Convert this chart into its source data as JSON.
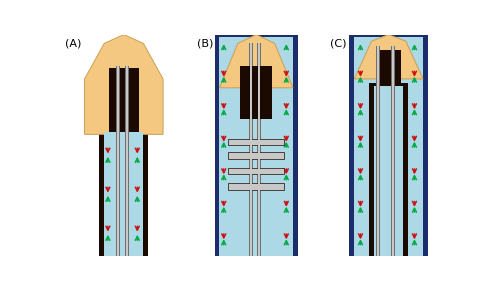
{
  "bg": "#ffffff",
  "light_blue": "#add8e6",
  "dark_navy": "#1c2d6b",
  "orange": "#f5c882",
  "dark_brown": "#1a0a02",
  "gray_light": "#c8c8c8",
  "gray_mid": "#a0a0a0",
  "gray_dark": "#707070",
  "green": "#00aa44",
  "red": "#cc1111",
  "panels": [
    "(A)",
    "(B)",
    "(C)"
  ],
  "label_fs": 8
}
